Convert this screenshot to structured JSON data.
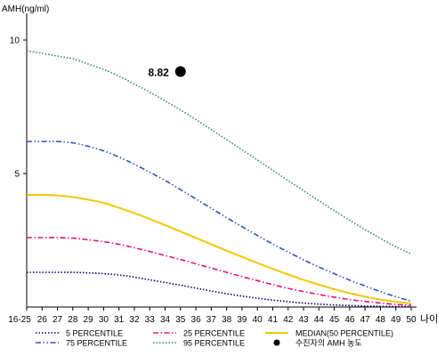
{
  "chart_data": {
    "type": "line",
    "ylabel": "AMH(ng/ml)",
    "xlabel": "나이",
    "ylim": [
      0,
      11
    ],
    "yticks": [
      5,
      10
    ],
    "categories": [
      "16-25",
      "26",
      "27",
      "28",
      "29",
      "30",
      "31",
      "32",
      "33",
      "34",
      "35",
      "36",
      "37",
      "38",
      "39",
      "40",
      "41",
      "42",
      "43",
      "44",
      "45",
      "46",
      "47",
      "48",
      "49",
      "50"
    ],
    "grid": false,
    "legend_position": "bottom",
    "series": [
      {
        "name": "5 PERCENTILE",
        "color": "#00007a",
        "dash": "dotted",
        "values": [
          1.3,
          1.3,
          1.3,
          1.3,
          1.28,
          1.25,
          1.2,
          1.12,
          1.02,
          0.92,
          0.82,
          0.71,
          0.6,
          0.5,
          0.41,
          0.33,
          0.26,
          0.2,
          0.15,
          0.11,
          0.08,
          0.06,
          0.04,
          0.03,
          0.02,
          0.02
        ]
      },
      {
        "name": "25 PERCENTILE",
        "color": "#e0157a",
        "dash": "dashdot",
        "values": [
          2.6,
          2.6,
          2.6,
          2.58,
          2.52,
          2.45,
          2.35,
          2.22,
          2.08,
          1.93,
          1.78,
          1.62,
          1.46,
          1.3,
          1.14,
          0.99,
          0.84,
          0.7,
          0.58,
          0.47,
          0.37,
          0.28,
          0.21,
          0.15,
          0.1,
          0.07
        ]
      },
      {
        "name": "MEDIAN(50 PERCENTILE)",
        "color": "#f0c800",
        "dash": "solid",
        "values": [
          4.2,
          4.2,
          4.18,
          4.12,
          4.02,
          3.9,
          3.72,
          3.52,
          3.3,
          3.07,
          2.83,
          2.59,
          2.35,
          2.11,
          1.88,
          1.65,
          1.43,
          1.22,
          1.02,
          0.84,
          0.67,
          0.52,
          0.39,
          0.28,
          0.2,
          0.13
        ]
      },
      {
        "name": "75 PERCENTILE",
        "color": "#3050c0",
        "dash": "dashdotdot",
        "values": [
          6.2,
          6.2,
          6.2,
          6.15,
          6.02,
          5.85,
          5.62,
          5.35,
          5.05,
          4.74,
          4.4,
          4.05,
          3.7,
          3.35,
          3.01,
          2.68,
          2.36,
          2.06,
          1.77,
          1.5,
          1.25,
          1.01,
          0.79,
          0.58,
          0.39,
          0.22
        ]
      },
      {
        "name": "95 PERCENTILE",
        "color": "#2e8b57",
        "dash": "dotted",
        "values": [
          9.6,
          9.5,
          9.4,
          9.3,
          9.1,
          8.9,
          8.65,
          8.35,
          8.05,
          7.72,
          7.38,
          7.02,
          6.65,
          6.27,
          5.89,
          5.51,
          5.12,
          4.74,
          4.36,
          3.98,
          3.61,
          3.25,
          2.9,
          2.57,
          2.26,
          1.99
        ]
      }
    ],
    "marker": {
      "name": "수진자의 AMH 농도",
      "x": "35",
      "y": 8.82,
      "label": "8.82",
      "color": "#000000"
    },
    "legend_order": [
      "5 PERCENTILE",
      "25 PERCENTILE",
      "MEDIAN(50 PERCENTILE)",
      "75 PERCENTILE",
      "95 PERCENTILE",
      "수진자의 AMH 농도"
    ]
  }
}
